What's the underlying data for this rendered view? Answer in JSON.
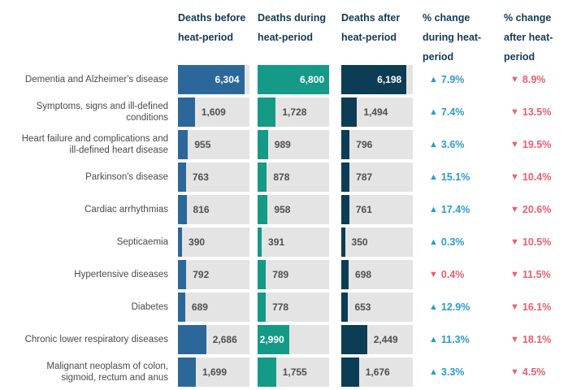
{
  "header": {
    "columns": [
      "Deaths before heat-period",
      "Deaths during heat-period",
      "Deaths after heat-period",
      "% change during heat-period",
      "% change after heat-period"
    ]
  },
  "icons": {
    "up": "▲",
    "down": "▼"
  },
  "colors": {
    "bar_before": "#2B6899",
    "bar_during": "#149A86",
    "bar_after": "#0D3C55",
    "cell_background": "#E4E4E4",
    "change_up": "#2E9BC9",
    "change_down": "#EE5D6C",
    "header_text": "#143A52",
    "label_text": "#4A4A4A",
    "value_text": "#4F4F4F"
  },
  "chart_data": {
    "type": "bar",
    "orientation": "horizontal",
    "max_scale": 6800,
    "columns": [
      "Deaths before heat-period",
      "Deaths during heat-period",
      "Deaths after heat-period",
      "% change during heat-period",
      "% change after heat-period"
    ],
    "rows": [
      {
        "label": "Dementia and Alzheimer's disease",
        "before": 6304,
        "during": 6800,
        "after": 6198,
        "before_label": "6,304",
        "during_label": "6,800",
        "after_label": "6,198",
        "before_inside": true,
        "during_inside": true,
        "after_inside": true,
        "change_during": {
          "dir": "up",
          "text": "7.9%"
        },
        "change_after": {
          "dir": "down",
          "text": "8.9%"
        }
      },
      {
        "label": "Symptoms, signs and ill-defined\nconditions",
        "before": 1609,
        "during": 1728,
        "after": 1494,
        "before_label": "1,609",
        "during_label": "1,728",
        "after_label": "1,494",
        "before_inside": false,
        "during_inside": false,
        "after_inside": false,
        "change_during": {
          "dir": "up",
          "text": "7.4%"
        },
        "change_after": {
          "dir": "down",
          "text": "13.5%"
        }
      },
      {
        "label": "Heart failure and complications and\nill-defined heart disease",
        "before": 955,
        "during": 989,
        "after": 796,
        "before_label": "955",
        "during_label": "989",
        "after_label": "796",
        "before_inside": false,
        "during_inside": false,
        "after_inside": false,
        "change_during": {
          "dir": "up",
          "text": "3.6%"
        },
        "change_after": {
          "dir": "down",
          "text": "19.5%"
        }
      },
      {
        "label": "Parkinson's disease",
        "before": 763,
        "during": 878,
        "after": 787,
        "before_label": "763",
        "during_label": "878",
        "after_label": "787",
        "before_inside": false,
        "during_inside": false,
        "after_inside": false,
        "change_during": {
          "dir": "up",
          "text": "15.1%"
        },
        "change_after": {
          "dir": "down",
          "text": "10.4%"
        }
      },
      {
        "label": "Cardiac arrhythmias",
        "before": 816,
        "during": 958,
        "after": 761,
        "before_label": "816",
        "during_label": "958",
        "after_label": "761",
        "before_inside": false,
        "during_inside": false,
        "after_inside": false,
        "change_during": {
          "dir": "up",
          "text": "17.4%"
        },
        "change_after": {
          "dir": "down",
          "text": "20.6%"
        }
      },
      {
        "label": "Septicaemia",
        "before": 390,
        "during": 391,
        "after": 350,
        "before_label": "390",
        "during_label": "391",
        "after_label": "350",
        "before_inside": false,
        "during_inside": false,
        "after_inside": false,
        "change_during": {
          "dir": "up",
          "text": "0.3%"
        },
        "change_after": {
          "dir": "down",
          "text": "10.5%"
        }
      },
      {
        "label": "Hypertensive diseases",
        "before": 792,
        "during": 789,
        "after": 698,
        "before_label": "792",
        "during_label": "789",
        "after_label": "698",
        "before_inside": false,
        "during_inside": false,
        "after_inside": false,
        "change_during": {
          "dir": "down",
          "text": "0.4%"
        },
        "change_after": {
          "dir": "down",
          "text": "11.5%"
        }
      },
      {
        "label": "Diabetes",
        "before": 689,
        "during": 778,
        "after": 653,
        "before_label": "689",
        "during_label": "778",
        "after_label": "653",
        "before_inside": false,
        "during_inside": false,
        "after_inside": false,
        "change_during": {
          "dir": "up",
          "text": "12.9%"
        },
        "change_after": {
          "dir": "down",
          "text": "16.1%"
        }
      },
      {
        "label": "Chronic lower respiratory diseases",
        "before": 2686,
        "during": 2990,
        "after": 2449,
        "before_label": "2,686",
        "during_label": "2,990",
        "after_label": "2,449",
        "before_inside": false,
        "during_inside": true,
        "after_inside": false,
        "change_during": {
          "dir": "up",
          "text": "11.3%"
        },
        "change_after": {
          "dir": "down",
          "text": "18.1%"
        }
      },
      {
        "label": "Malignant neoplasm of colon,\nsigmoid, rectum and anus",
        "before": 1699,
        "during": 1755,
        "after": 1676,
        "before_label": "1,699",
        "during_label": "1,755",
        "after_label": "1,676",
        "before_inside": false,
        "during_inside": false,
        "after_inside": false,
        "change_during": {
          "dir": "up",
          "text": "3.3%"
        },
        "change_after": {
          "dir": "down",
          "text": "4.5%"
        }
      }
    ]
  }
}
